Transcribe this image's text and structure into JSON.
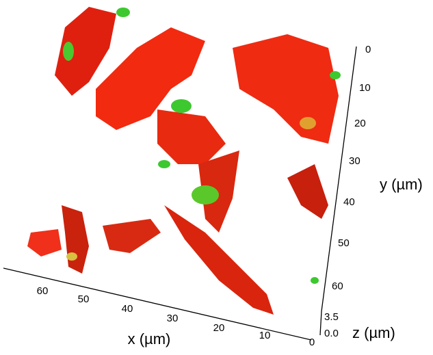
{
  "axes": {
    "x": {
      "label": "x (µm)",
      "ticks": [
        "60",
        "50",
        "40",
        "30",
        "20",
        "10",
        "0"
      ]
    },
    "y": {
      "label": "y (µm)",
      "ticks": [
        "0",
        "10",
        "20",
        "30",
        "40",
        "50",
        "60"
      ]
    },
    "z": {
      "label": "z (µm)",
      "ticks": [
        "3.5",
        "0.0"
      ]
    }
  }
}
